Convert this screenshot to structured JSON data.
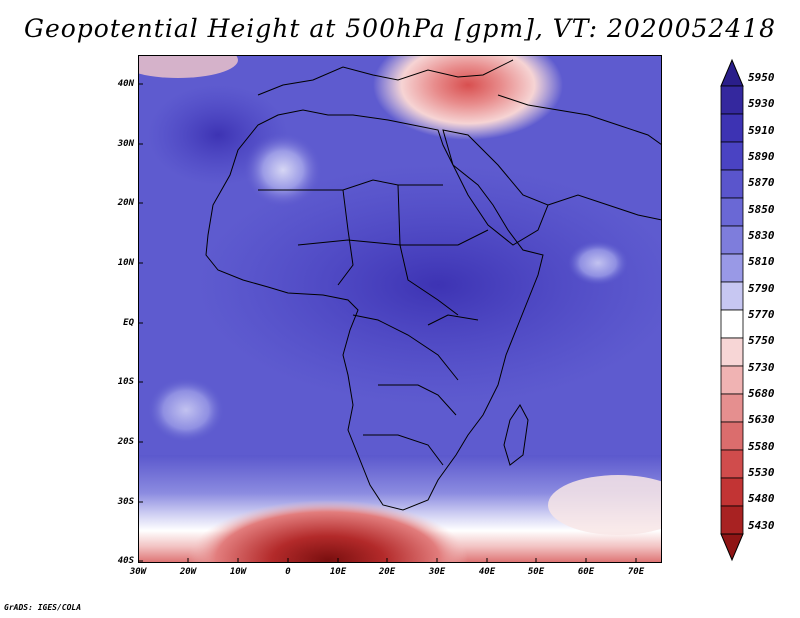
{
  "title": "Geopotential Height at 500hPa [gpm], VT: 2020052418",
  "footer": "GrADS: IGES/COLA",
  "map": {
    "lat_labels": [
      "40N",
      "30N",
      "20N",
      "10N",
      "EQ",
      "10S",
      "20S",
      "30S",
      "40S"
    ],
    "lon_labels": [
      "30W",
      "20W",
      "10W",
      "0",
      "10E",
      "20E",
      "30E",
      "40E",
      "50E",
      "60E",
      "70E"
    ]
  },
  "colorbar": {
    "levels": [
      "5950",
      "5930",
      "5910",
      "5890",
      "5870",
      "5850",
      "5830",
      "5810",
      "5790",
      "5770",
      "5750",
      "5730",
      "5680",
      "5630",
      "5580",
      "5530",
      "5480",
      "5430"
    ],
    "colors": [
      "#2a1e8a",
      "#34289e",
      "#3d33b3",
      "#4a43c3",
      "#5a55cc",
      "#6a68d5",
      "#7e7ddc",
      "#9999e6",
      "#c7c7f2",
      "#ffffff",
      "#f7d6d6",
      "#f0b3b3",
      "#e58f8f",
      "#db6d6d",
      "#d04c4c",
      "#c23434",
      "#a82222",
      "#8f1515"
    ]
  }
}
